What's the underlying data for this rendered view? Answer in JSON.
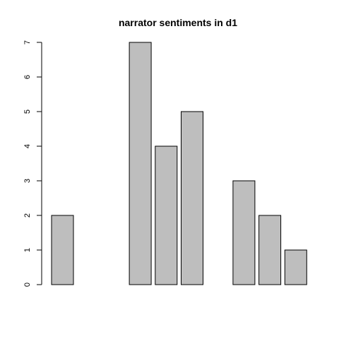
{
  "chart_data": {
    "type": "bar",
    "title": "narrator sentiments in d1",
    "xlabel": "",
    "ylabel": "",
    "categories": [
      "",
      "",
      "",
      "",
      "",
      "",
      "",
      "",
      "",
      ""
    ],
    "values": [
      2,
      0,
      0,
      7,
      4,
      5,
      0,
      3,
      2,
      1
    ],
    "ylim": [
      0,
      7
    ],
    "yticks": [
      "0",
      "1",
      "2",
      "3",
      "4",
      "5",
      "6",
      "7"
    ],
    "grid": false,
    "legend": "none",
    "bar_color": "#bebebe",
    "edge_color": "#000000"
  }
}
